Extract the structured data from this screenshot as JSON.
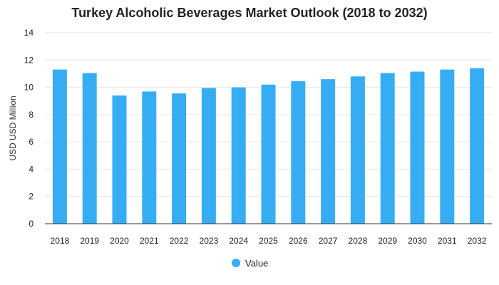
{
  "chart_data": {
    "type": "bar",
    "title": "Turkey Alcoholic Beverages Market Outlook (2018 to 2032)",
    "xlabel": "",
    "ylabel": "USD USD Million",
    "categories": [
      "2018",
      "2019",
      "2020",
      "2021",
      "2022",
      "2023",
      "2024",
      "2025",
      "2026",
      "2027",
      "2028",
      "2029",
      "2030",
      "2031",
      "2032"
    ],
    "series": [
      {
        "name": "Value",
        "values": [
          11.3,
          11.05,
          9.4,
          9.7,
          9.55,
          9.95,
          10.0,
          10.2,
          10.45,
          10.6,
          10.8,
          11.05,
          11.15,
          11.3,
          11.4
        ]
      }
    ],
    "ylim": [
      0,
      14
    ],
    "yticks": [
      0,
      2,
      4,
      6,
      8,
      10,
      12,
      14
    ],
    "grid": true,
    "legend_position": "bottom",
    "colors": {
      "bar": "#36adf3",
      "grid": "#e6e6e6",
      "axis": "#333333"
    }
  }
}
